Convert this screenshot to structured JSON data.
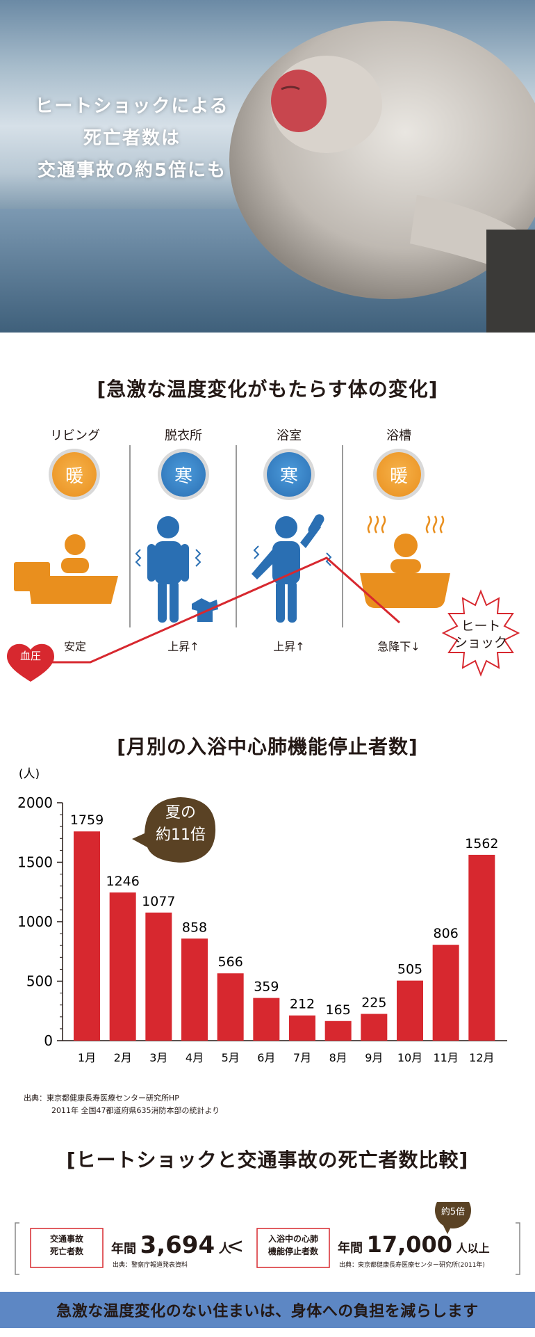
{
  "hero": {
    "lines": [
      "ヒートショックによる",
      "死亡者数は",
      "交通事故の約5倍にも"
    ]
  },
  "section1": {
    "title": "[急激な温度変化がもたらす体の変化]",
    "columns": [
      {
        "label": "リビング",
        "badge": "暖",
        "temp": "warm",
        "bp": "安定"
      },
      {
        "label": "脱衣所",
        "badge": "寒",
        "temp": "cold",
        "bp": "上昇↑"
      },
      {
        "label": "浴室",
        "badge": "寒",
        "temp": "cold",
        "bp": "上昇↑"
      },
      {
        "label": "浴槽",
        "badge": "暖",
        "temp": "warm",
        "bp": "急降下↓"
      }
    ],
    "bp_tag": "血圧",
    "heat_shock": [
      "ヒート",
      "ショック"
    ]
  },
  "section2": {
    "title": "[月別の入浴中心肺機能停止者数]",
    "callout": [
      "夏の",
      "約11倍"
    ]
  },
  "chart_data": {
    "type": "bar",
    "title": "[月別の入浴中心肺機能停止者数]",
    "ylabel": "(人)",
    "categories": [
      "1月",
      "2月",
      "3月",
      "4月",
      "5月",
      "6月",
      "7月",
      "8月",
      "9月",
      "10月",
      "11月",
      "12月"
    ],
    "values": [
      1759,
      1246,
      1077,
      858,
      566,
      359,
      212,
      165,
      225,
      505,
      806,
      1562
    ],
    "ylim": [
      0,
      2000
    ],
    "yticks": [
      0,
      500,
      1000,
      1500,
      2000
    ],
    "bar_color": "#d7282f"
  },
  "source1": [
    "出典：東京都健康長寿医療センター研究所HP",
    "2011年 全国47都道府県635消防本部の統計より"
  ],
  "section3": {
    "title": "[ヒートショックと交通事故の死亡者数比較]",
    "left_box": [
      "交通事故",
      "死亡者数"
    ],
    "left_prefix": "年間",
    "left_value": "3,694",
    "left_unit": "人",
    "left_source": "出典：警察庁報道発表資料",
    "compare": "<",
    "right_box": [
      "入浴中の心肺",
      "機能停止者数"
    ],
    "right_prefix": "年間",
    "right_value": "17,000",
    "right_unit": "人以上",
    "right_source": "出典：東京都健康長寿医療センター研究所(2011年)",
    "badge": "約5倍"
  },
  "footer": {
    "message": "急激な温度変化のない住まいは、身体への負担を減らします"
  },
  "colors": {
    "red": "#d7282f",
    "orange": "#e98f1e",
    "blue": "#2a6fb3",
    "band": "#5d87c4",
    "brown": "#5a4224"
  }
}
